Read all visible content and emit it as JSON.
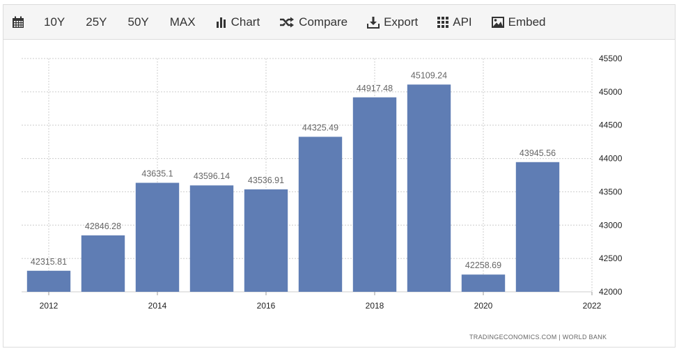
{
  "toolbar": {
    "items": [
      {
        "label": "",
        "icon": "calendar-icon"
      },
      {
        "label": "10Y"
      },
      {
        "label": "25Y"
      },
      {
        "label": "50Y"
      },
      {
        "label": "MAX"
      },
      {
        "label": "Chart",
        "icon": "bar-chart-icon"
      },
      {
        "label": "Compare",
        "icon": "shuffle-icon"
      },
      {
        "label": "Export",
        "icon": "download-icon"
      },
      {
        "label": "API",
        "icon": "grid-icon"
      },
      {
        "label": "Embed",
        "icon": "image-icon"
      }
    ]
  },
  "credit": "TRADINGECONOMICS.COM  |  WORLD BANK",
  "colors": {
    "bar": "#5f7db4",
    "grid": "#cccccc",
    "axis_text": "#222222",
    "label_text": "#666666"
  },
  "chart_data": {
    "type": "bar",
    "categories": [
      "2012",
      "2013",
      "2014",
      "2015",
      "2016",
      "2017",
      "2018",
      "2019",
      "2020",
      "2021"
    ],
    "values": [
      42315.81,
      42846.28,
      43635.1,
      43596.14,
      43536.91,
      44325.49,
      44917.48,
      45109.24,
      42258.69,
      43945.56
    ],
    "value_labels": [
      "42315.81",
      "42846.28",
      "43635.1",
      "43596.14",
      "43536.91",
      "44325.49",
      "44917.48",
      "45109.24",
      "42258.69",
      "43945.56"
    ],
    "x_ticks": [
      "2012",
      "2014",
      "2016",
      "2018",
      "2020",
      "2022"
    ],
    "y_ticks": [
      "42000",
      "42500",
      "43000",
      "43500",
      "44000",
      "44500",
      "45000",
      "45500"
    ],
    "ylim": [
      42000,
      45500
    ],
    "xlim": [
      2011.5,
      2022
    ],
    "y_axis_side": "right",
    "grid": true
  }
}
